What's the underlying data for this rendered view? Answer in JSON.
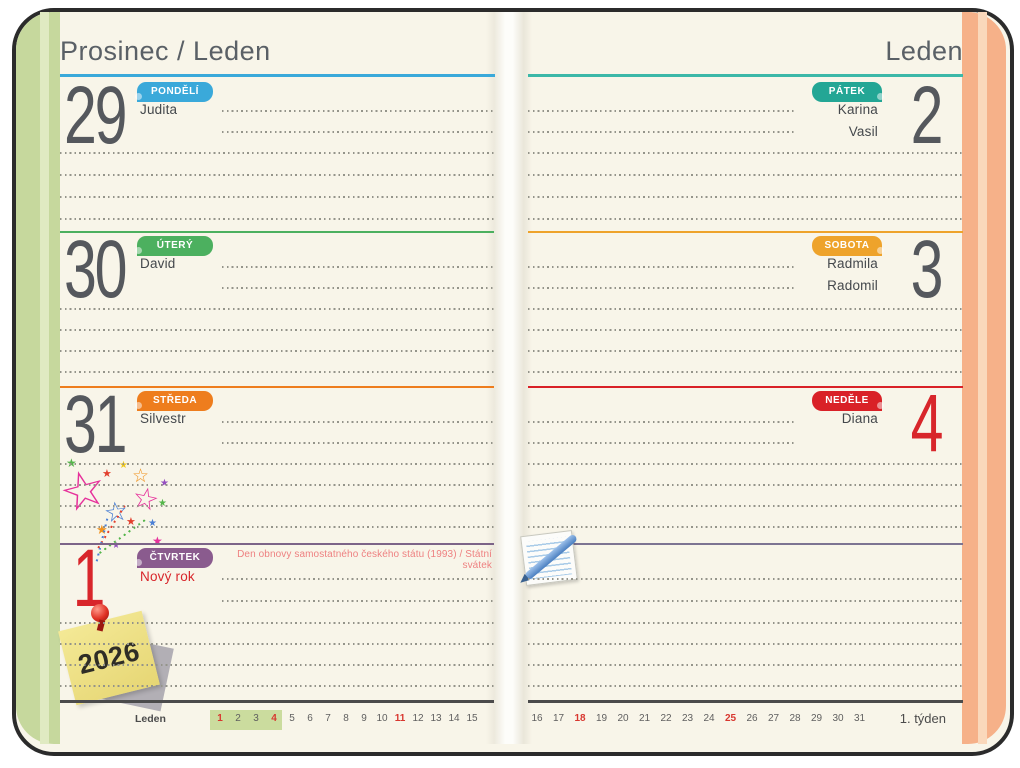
{
  "colors": {
    "page": "#f8f5e9",
    "book_border": "#2b2b2b",
    "cover_left": "#c6d89d",
    "cover_left_stripe": "#e0eac2",
    "cover_right": "#f6b189",
    "cover_right_stripe": "#fad8bb",
    "title_text": "#5a6066",
    "number_gray": "#55585d",
    "number_red": "#d8262b",
    "dotted_line": "#94948a",
    "dark_line": "#4b4b4b",
    "holiday_text": "#ee8181",
    "calendar_text": "#5f5f5f",
    "calendar_red": "#d8372f",
    "calendar_highlight": "#cbdc9e",
    "left_underline": "#3aa9da",
    "right_underline": "#3cb8a8"
  },
  "left_page": {
    "title": "Prosinec / Leden",
    "days": [
      {
        "number": "29",
        "day_label": "PONDĚLÍ",
        "names": [
          "Judita"
        ],
        "tab_color": "#3aa9da",
        "line_color": "#3aa9da",
        "number_color": "#55585d"
      },
      {
        "number": "30",
        "day_label": "ÚTERÝ",
        "names": [
          "David"
        ],
        "tab_color": "#4cb05f",
        "line_color": "#4cb05f",
        "number_color": "#55585d"
      },
      {
        "number": "31",
        "day_label": "STŘEDA",
        "names": [
          "Silvestr"
        ],
        "tab_color": "#ee7d1d",
        "line_color": "#ee7d1d",
        "number_color": "#55585d"
      },
      {
        "number": "1",
        "day_label": "ČTVRTEK",
        "names": [
          "Nový rok"
        ],
        "names_color": "#d8262b",
        "tab_color": "#8a5b8e",
        "line_color": "#7c6488",
        "number_color": "#d8262b",
        "holiday_note": "Den obnovy samostatného českého státu (1993) / Státní svátek"
      }
    ],
    "mini_calendar": {
      "month_label": "Leden",
      "days": [
        {
          "d": "1",
          "red": true,
          "hl": true
        },
        {
          "d": "2",
          "hl": true
        },
        {
          "d": "3",
          "hl": true
        },
        {
          "d": "4",
          "red": true,
          "hl": true
        },
        {
          "d": "5"
        },
        {
          "d": "6"
        },
        {
          "d": "7"
        },
        {
          "d": "8"
        },
        {
          "d": "9"
        },
        {
          "d": "10"
        },
        {
          "d": "11",
          "red": true
        },
        {
          "d": "12"
        },
        {
          "d": "13"
        },
        {
          "d": "14"
        },
        {
          "d": "15"
        }
      ]
    }
  },
  "right_page": {
    "title": "Leden",
    "days": [
      {
        "number": "2",
        "day_label": "PÁTEK",
        "names": [
          "Karina",
          "Vasil"
        ],
        "tab_color": "#23a695",
        "line_color": "#3cb8a8",
        "number_color": "#55585d"
      },
      {
        "number": "3",
        "day_label": "SOBOTA",
        "names": [
          "Radmila",
          "Radomil"
        ],
        "tab_color": "#eea32b",
        "line_color": "#eea32b",
        "number_color": "#55585d"
      },
      {
        "number": "4",
        "day_label": "NEDĚLE",
        "names": [
          "Diana"
        ],
        "tab_color": "#d92127",
        "line_color": "#d92127",
        "number_color": "#d8262b"
      }
    ],
    "notes_line_color": "#7d7492",
    "mini_calendar": {
      "week_label": "1. týden",
      "days": [
        {
          "d": "16"
        },
        {
          "d": "17"
        },
        {
          "d": "18",
          "red": true
        },
        {
          "d": "19"
        },
        {
          "d": "20"
        },
        {
          "d": "21"
        },
        {
          "d": "22"
        },
        {
          "d": "23"
        },
        {
          "d": "24"
        },
        {
          "d": "25",
          "red": true
        },
        {
          "d": "26"
        },
        {
          "d": "27"
        },
        {
          "d": "28"
        },
        {
          "d": "29"
        },
        {
          "d": "30"
        },
        {
          "d": "31"
        }
      ]
    }
  },
  "stickers": {
    "sticky_note_year": "2026"
  },
  "icons": {
    "star": "★",
    "star_outline": "☆"
  }
}
